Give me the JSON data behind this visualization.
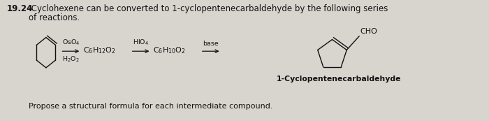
{
  "bg_color": "#d8d5cf",
  "title_bold": "19.24",
  "title_rest": " Cyclohexene can be converted to 1-cyclopentenecarbaldehyde by the following series",
  "title_line2": "of reactions.",
  "arrow1_above": "OsO$_4$",
  "arrow1_below": "H$_2$O$_2$",
  "compound1": "C$_6$H$_{12}$O$_2$",
  "arrow2_above": "HIO$_4$",
  "compound2": "C$_6$H$_{10}$O$_2$",
  "arrow3_above": "base",
  "cho_label": "CHO",
  "product_name": "1-Cyclopentenecarbaldehyde",
  "footer": "Propose a structural formula for each intermediate compound.",
  "text_color": "#111111",
  "fs_title": 8.5,
  "fs_body": 8.0,
  "fs_small": 6.8,
  "fs_product": 7.8,
  "fs_footer": 8.0
}
